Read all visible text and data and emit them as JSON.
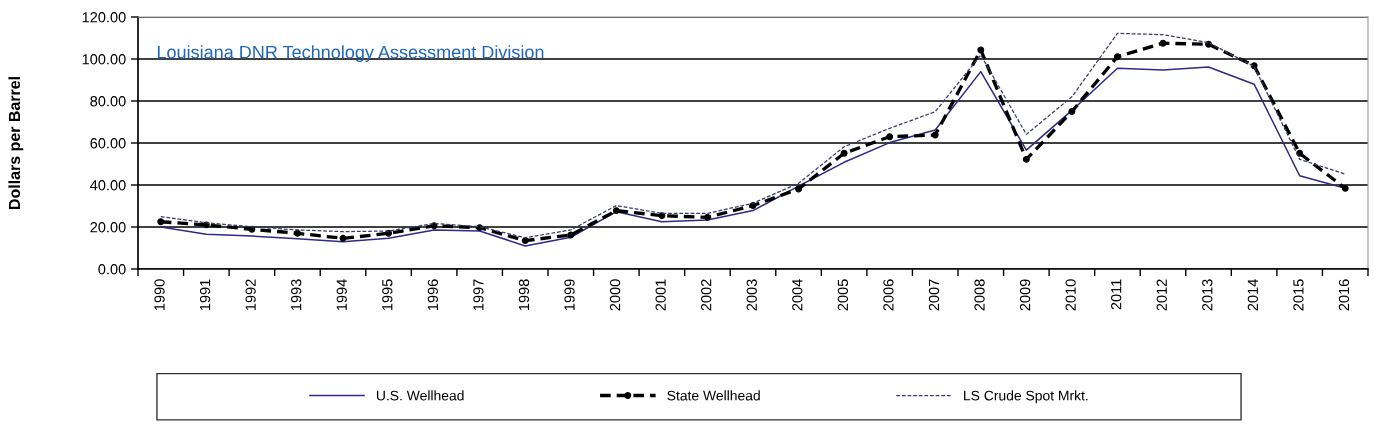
{
  "chart_data": {
    "type": "line",
    "ylabel": "Dollars per Barrel",
    "annotations": [
      "Louisiana DNR Technology Assessment Division"
    ],
    "categories": [
      "1990",
      "1991",
      "1992",
      "1993",
      "1994",
      "1995",
      "1996",
      "1997",
      "1998",
      "1999",
      "2000",
      "2001",
      "2002",
      "2003",
      "2004",
      "2005",
      "2006",
      "2007",
      "2008",
      "2009",
      "2010",
      "2011",
      "2012",
      "2013",
      "2014",
      "2015",
      "2016"
    ],
    "series": [
      {
        "name": "U.S. Wellhead",
        "color": "#2e2a86",
        "line_style": "solid",
        "marker": "none",
        "values": [
          20.0,
          16.5,
          15.7,
          14.4,
          13.0,
          14.6,
          18.6,
          18.1,
          11.0,
          15.1,
          27.3,
          22.5,
          23.3,
          27.8,
          39.5,
          50.8,
          60.2,
          66.2,
          94.0,
          56.6,
          75.5,
          95.6,
          94.8,
          96.2,
          88.0,
          44.4,
          38.4
        ]
      },
      {
        "name": "State Wellhead",
        "color": "#000000",
        "line_style": "dashed",
        "marker": "circle",
        "values": [
          22.5,
          21.0,
          18.9,
          17.0,
          14.6,
          17.0,
          20.6,
          19.7,
          13.5,
          16.2,
          27.8,
          25.4,
          24.6,
          30.2,
          38.1,
          55.1,
          63.0,
          63.8,
          104.3,
          52.2,
          75.0,
          101.1,
          107.5,
          107.0,
          96.8,
          55.1,
          38.4
        ]
      },
      {
        "name": "LS Crude Spot Mrkt.",
        "color": "#3a3a6e",
        "line_style": "dotted",
        "marker": "none",
        "values": [
          24.9,
          22.0,
          20.1,
          18.6,
          17.8,
          18.1,
          21.7,
          20.1,
          14.9,
          18.6,
          30.2,
          26.5,
          26.5,
          31.3,
          40.8,
          58.2,
          67.0,
          74.9,
          101.9,
          64.1,
          82.0,
          112.2,
          111.6,
          107.8,
          96.5,
          52.2,
          45.2
        ]
      }
    ],
    "ylim": [
      0,
      120
    ],
    "yticks": [
      {
        "value": 0,
        "label": "0.00"
      },
      {
        "value": 20,
        "label": "20.00"
      },
      {
        "value": 40,
        "label": "40.00"
      },
      {
        "value": 60,
        "label": "60.00"
      },
      {
        "value": 80,
        "label": "80.00"
      },
      {
        "value": 100,
        "label": "100.00"
      },
      {
        "value": 120,
        "label": "120.00"
      }
    ],
    "grid": "y",
    "legend": "bottom"
  }
}
